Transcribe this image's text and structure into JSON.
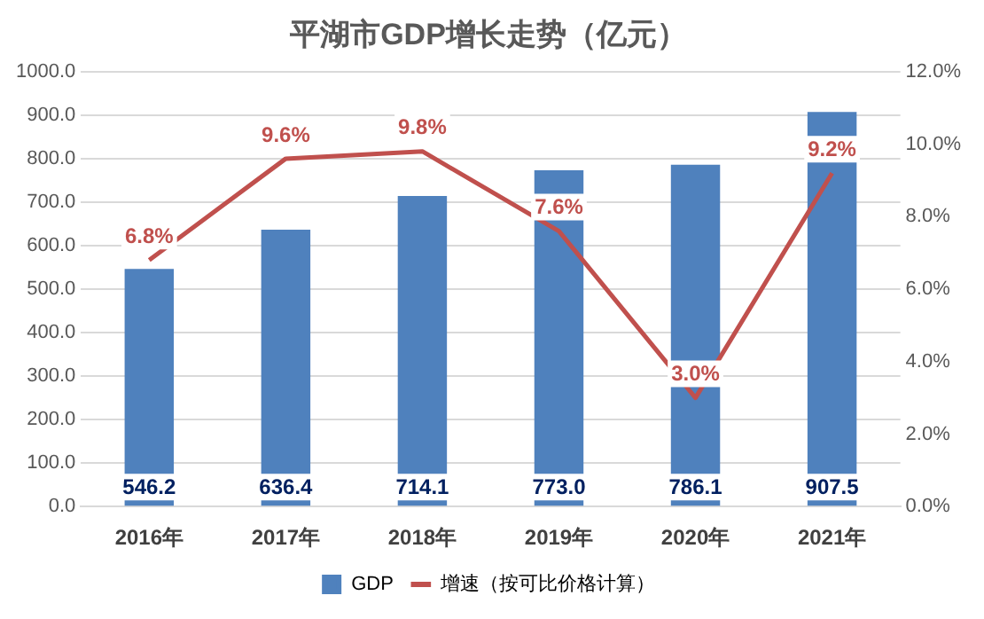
{
  "chart_data": {
    "type": "bar",
    "title": "平湖市GDP增长走势（亿元）",
    "categories": [
      "2016年",
      "2017年",
      "2018年",
      "2019年",
      "2020年",
      "2021年"
    ],
    "series": [
      {
        "name": "GDP",
        "color": "#4f81bd",
        "values": [
          546.2,
          636.4,
          714.1,
          773.0,
          786.1,
          907.5
        ],
        "value_labels": [
          "546.2",
          "636.4",
          "714.1",
          "773.0",
          "786.1",
          "907.5"
        ]
      },
      {
        "name": "增速（按可比价格计算）",
        "type": "line",
        "axis": "y2",
        "color": "#c0504d",
        "values": [
          6.8,
          9.6,
          9.8,
          7.6,
          3.0,
          9.2
        ],
        "value_labels": [
          "6.8%",
          "9.6%",
          "9.8%",
          "7.6%",
          "3.0%",
          "9.2%"
        ]
      }
    ],
    "ylim": [
      0,
      1000
    ],
    "yticks": [
      {
        "value": 0,
        "label": "0.0"
      },
      {
        "value": 100,
        "label": "100.0"
      },
      {
        "value": 200,
        "label": "200.0"
      },
      {
        "value": 300,
        "label": "300.0"
      },
      {
        "value": 400,
        "label": "400.0"
      },
      {
        "value": 500,
        "label": "500.0"
      },
      {
        "value": 600,
        "label": "600.0"
      },
      {
        "value": 700,
        "label": "700.0"
      },
      {
        "value": 800,
        "label": "800.0"
      },
      {
        "value": 900,
        "label": "900.0"
      },
      {
        "value": 1000,
        "label": "1000.0"
      }
    ],
    "y2lim": [
      0,
      12
    ],
    "y2ticks": [
      {
        "value": 0,
        "label": "0.0%"
      },
      {
        "value": 2,
        "label": "2.0%"
      },
      {
        "value": 4,
        "label": "4.0%"
      },
      {
        "value": 6,
        "label": "6.0%"
      },
      {
        "value": 8,
        "label": "8.0%"
      },
      {
        "value": 10,
        "label": "10.0%"
      },
      {
        "value": 12,
        "label": "12.0%"
      }
    ],
    "grid": "y",
    "legend": "bottom",
    "marker": "none",
    "line_style": "solid"
  }
}
